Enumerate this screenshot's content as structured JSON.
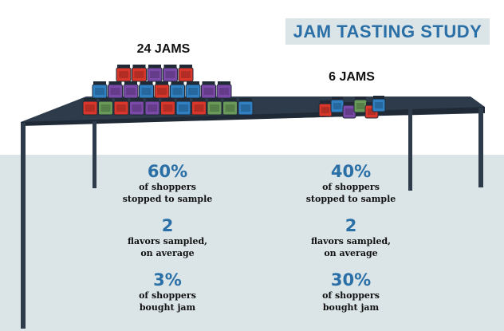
{
  "title": "JAM TASTING STUDY",
  "groups": [
    {
      "label": "24 JAMS",
      "stats": [
        {
          "value": "60%",
          "desc1": "of shoppers",
          "desc2": "stopped to sample"
        },
        {
          "value": "2",
          "desc1": "flavors sampled,",
          "desc2": "on average"
        },
        {
          "value": "3%",
          "desc1": "of shoppers",
          "desc2": "bought jam"
        }
      ]
    },
    {
      "label": "6 JAMS",
      "stats": [
        {
          "value": "40%",
          "desc1": "of shoppers",
          "desc2": "stopped to sample"
        },
        {
          "value": "2",
          "desc1": "flavors sampled,",
          "desc2": "on average"
        },
        {
          "value": "30%",
          "desc1": "of shoppers",
          "desc2": "bought jam"
        }
      ]
    }
  ],
  "colors": {
    "title": "#2a6fa6",
    "table": "#2d3b4b",
    "floor": "#dbe4e7",
    "jam_red": "#d9372b",
    "jam_blue": "#2f7fc1",
    "jam_purple": "#7b4aa8",
    "jam_green": "#6a9a5a"
  }
}
